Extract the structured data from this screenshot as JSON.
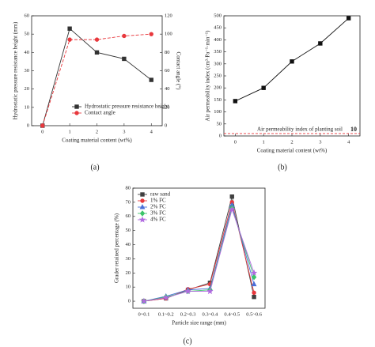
{
  "chart_data": [
    {
      "type": "line",
      "label": "(a)",
      "x_label": "Coating material content (wt%)",
      "y_label": "Hydrostatic pressure resistance height (mm)",
      "y2_label": "Contact angle (°)",
      "x": [
        0,
        1,
        2,
        3,
        4
      ],
      "xlim": [
        -0.4,
        4.4
      ],
      "xticks": [
        0,
        1,
        2,
        3,
        4
      ],
      "ylim": [
        0,
        60
      ],
      "yticks": [
        0,
        10,
        20,
        30,
        40,
        50,
        60
      ],
      "y2lim": [
        0,
        120
      ],
      "y2ticks": [
        0,
        20,
        40,
        60,
        80,
        100,
        120
      ],
      "legend": "lower right",
      "series": [
        {
          "name": "Hydrostatic pressure resistance height",
          "color": "#333333",
          "marker": "square",
          "dash": false,
          "values": [
            0,
            53,
            40,
            36.5,
            25
          ]
        },
        {
          "name": "Contact angle",
          "color": "#e8383d",
          "marker": "circle",
          "dash": true,
          "axis": "y2",
          "values": [
            0,
            94,
            94,
            98,
            100
          ]
        }
      ]
    },
    {
      "type": "line",
      "label": "(b)",
      "x_label": "Coating material content (wt%)",
      "y_label": "Air permeability index (cm³·Pa⁻¹·min⁻¹)",
      "x": [
        0,
        1,
        2,
        3,
        4
      ],
      "xlim": [
        -0.4,
        4.4
      ],
      "xticks": [
        0,
        1,
        2,
        3,
        4
      ],
      "ylim": [
        0,
        500
      ],
      "yticks": [
        0,
        50,
        100,
        150,
        200,
        250,
        300,
        350,
        400,
        450,
        500
      ],
      "reference_line": {
        "value": 10,
        "label": "Air permeability index of planting soil",
        "color": "#e8383d"
      },
      "series": [
        {
          "color": "#111111",
          "marker": "square",
          "dash": false,
          "values": [
            145,
            200,
            310,
            385,
            490
          ]
        }
      ]
    },
    {
      "type": "line",
      "label": "(c)",
      "x_label": "Particle size range (mm)",
      "y_label": "Grader retained percentage (%)",
      "categories": [
        "0~0.1",
        "0.1~0.2",
        "0.2~0.3",
        "0.3~0.4",
        "0.4~0.5",
        "0.5~0.6"
      ],
      "ylim": [
        -5,
        80
      ],
      "yticks": [
        0,
        10,
        20,
        30,
        40,
        50,
        60,
        70,
        80
      ],
      "legend": "upper left",
      "series": [
        {
          "name": "raw sand",
          "color": "#404040",
          "marker": "square",
          "dash": false,
          "values": [
            0,
            2,
            8,
            13,
            74,
            3
          ]
        },
        {
          "name": "1% FC",
          "color": "#e8383d",
          "marker": "circle",
          "dash": false,
          "values": [
            0,
            2,
            8.5,
            12,
            70,
            6
          ]
        },
        {
          "name": "2% FC",
          "color": "#4a6fd8",
          "marker": "triangle",
          "dash": false,
          "values": [
            0,
            3.5,
            8,
            9,
            68,
            12
          ]
        },
        {
          "name": "3% FC",
          "color": "#3cc46a",
          "marker": "diamond",
          "dash": false,
          "values": [
            0,
            3,
            7,
            8,
            66,
            17
          ]
        },
        {
          "name": "4% FC",
          "color": "#b06ae0",
          "marker": "star",
          "dash": false,
          "values": [
            0,
            2.5,
            7,
            7,
            65,
            20
          ]
        }
      ]
    }
  ]
}
